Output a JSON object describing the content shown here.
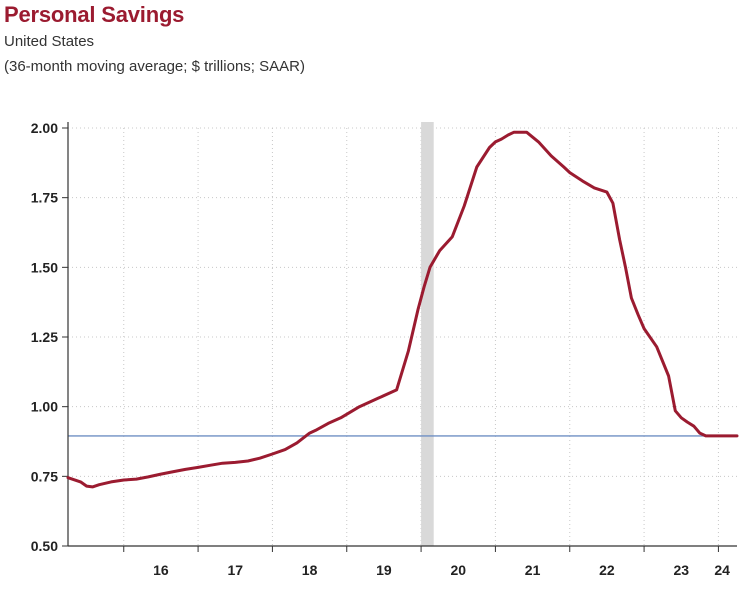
{
  "chart_data": {
    "type": "line",
    "title": "Personal Savings",
    "subtitle": "United States",
    "note": "(36-month moving average; $ trillions; SAAR)",
    "y_ticks": [
      "0.50",
      "0.75",
      "1.00",
      "1.25",
      "1.50",
      "1.75",
      "2.00"
    ],
    "ylim": [
      0.5,
      2.0
    ],
    "x_ticks": [
      "16",
      "17",
      "18",
      "19",
      "20",
      "21",
      "22",
      "23",
      "24"
    ],
    "xlim": [
      2015.25,
      2024.25
    ],
    "recession_shading": [
      2020.0,
      2020.17
    ],
    "reference_line": 0.895,
    "grid": true,
    "colors": {
      "line": "#9b1b30",
      "reference": "#6f8fc4",
      "recession": "#d9d9d9"
    },
    "series": [
      {
        "x": [
          2015.25,
          2015.42,
          2015.5,
          2015.58,
          2015.67,
          2015.83,
          2016.0,
          2016.17,
          2016.33,
          2016.5,
          2016.67,
          2016.83,
          2017.0,
          2017.17,
          2017.33,
          2017.5,
          2017.67,
          2017.83,
          2018.0,
          2018.17,
          2018.33,
          2018.5,
          2018.58,
          2018.75,
          2018.92,
          2019.17,
          2019.42,
          2019.67,
          2019.83,
          2019.96,
          2020.04,
          2020.12,
          2020.25,
          2020.42,
          2020.58,
          2020.75,
          2020.92,
          2021.0,
          2021.08,
          2021.17,
          2021.25,
          2021.42,
          2021.58,
          2021.75,
          2021.92,
          2022.0,
          2022.17,
          2022.33,
          2022.5,
          2022.58,
          2022.67,
          2022.75,
          2022.83,
          2022.92,
          2023.0,
          2023.17,
          2023.33,
          2023.42,
          2023.5,
          2023.58,
          2023.67,
          2023.75,
          2023.83,
          2024.0,
          2024.17,
          2024.25
        ],
        "y": [
          0.745,
          0.73,
          0.715,
          0.712,
          0.72,
          0.73,
          0.737,
          0.74,
          0.748,
          0.758,
          0.767,
          0.775,
          0.782,
          0.79,
          0.797,
          0.8,
          0.805,
          0.815,
          0.83,
          0.846,
          0.87,
          0.905,
          0.915,
          0.94,
          0.96,
          1.0,
          1.03,
          1.06,
          1.2,
          1.35,
          1.43,
          1.5,
          1.56,
          1.61,
          1.72,
          1.86,
          1.93,
          1.95,
          1.96,
          1.975,
          1.985,
          1.985,
          1.95,
          1.9,
          1.86,
          1.84,
          1.81,
          1.785,
          1.77,
          1.73,
          1.6,
          1.5,
          1.39,
          1.33,
          1.28,
          1.215,
          1.11,
          0.985,
          0.96,
          0.945,
          0.93,
          0.905,
          0.895,
          0.895,
          0.895,
          0.895
        ]
      }
    ]
  }
}
